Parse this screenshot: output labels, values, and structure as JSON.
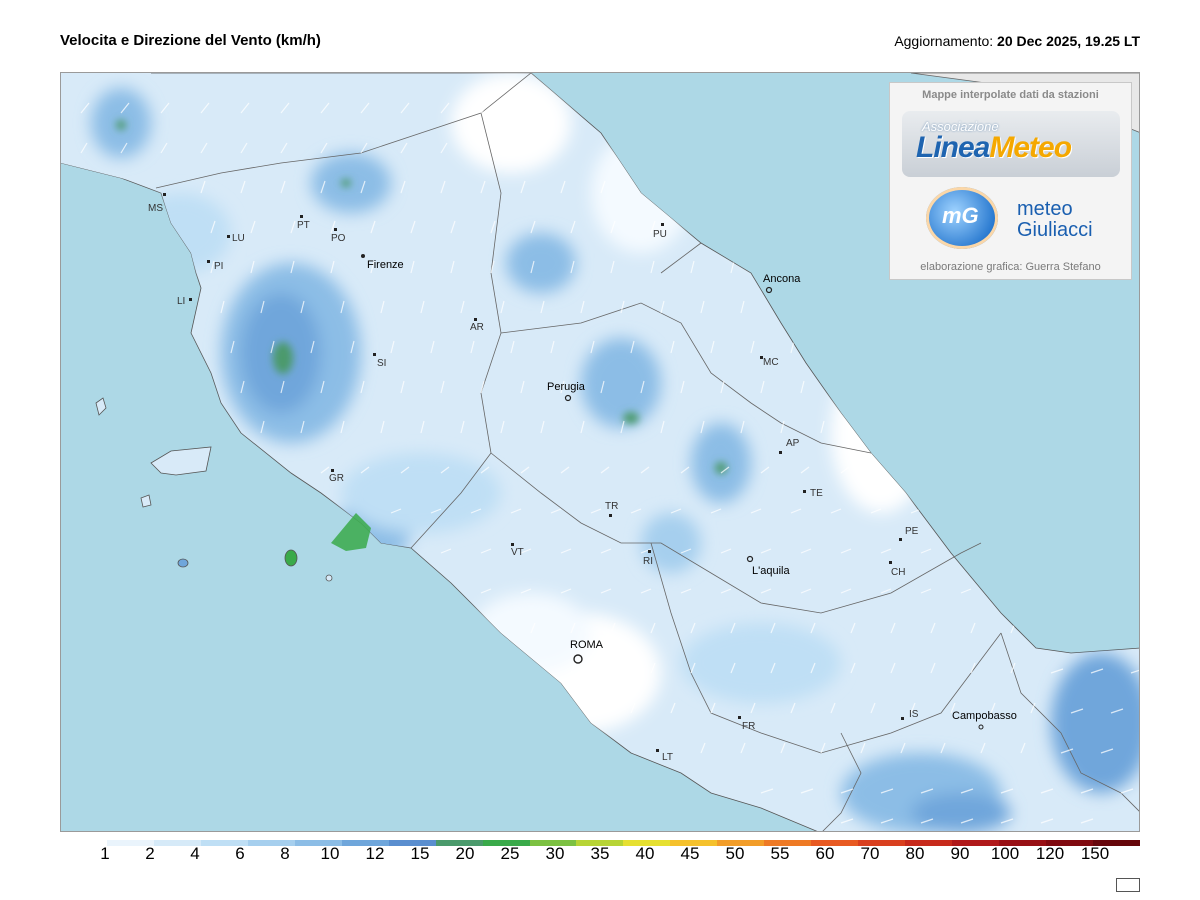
{
  "header": {
    "title": "Velocita e Direzione del Vento  (km/h)",
    "update_label": "Aggiornamento:",
    "update_value": "20 Dec 2025, 19.25 LT"
  },
  "logo": {
    "heading": "Mappe interpolate dati da stazioni",
    "association_small": "Associazione",
    "brand_part1": "Linea",
    "brand_part2": "Meteo",
    "mg_mark": "mG",
    "partner_line1": "meteo",
    "partner_line2": "Giuliacci",
    "credit": "elaborazione grafica: Guerra Stefano"
  },
  "cities": [
    "MS",
    "LU",
    "PT",
    "PO",
    "PI",
    "LI",
    "Firenze",
    "SI",
    "AR",
    "PU",
    "Ancona",
    "MC",
    "Perugia",
    "AP",
    "TE",
    "GR",
    "TR",
    "VT",
    "RI",
    "PE",
    "L'aquila",
    "CH",
    "ROMA",
    "FR",
    "LT",
    "IS",
    "Campobasso"
  ],
  "colorbar": {
    "labels": [
      "1",
      "2",
      "4",
      "6",
      "8",
      "10",
      "12",
      "15",
      "20",
      "25",
      "30",
      "35",
      "40",
      "45",
      "50",
      "55",
      "60",
      "70",
      "80",
      "90",
      "100",
      "120",
      "150"
    ],
    "colors": [
      "#ffffff",
      "#eaf4fc",
      "#d6eaf8",
      "#bfdff5",
      "#a6cfee",
      "#8cbde6",
      "#6fa6db",
      "#5a8ecf",
      "#4b9a6c",
      "#3aaa4a",
      "#7cc142",
      "#b7d435",
      "#e6e031",
      "#f5c12c",
      "#f29d29",
      "#ee7a25",
      "#e85a22",
      "#d9401f",
      "#c72a1c",
      "#b0191a",
      "#981015",
      "#800a10",
      "#66060b"
    ]
  },
  "map": {
    "sea_color": "#add8e6",
    "land_base_color": "#d8eaf8",
    "calm_color": "#ffffff",
    "strong_wind_color": "#5a8ecf",
    "peak_wind_color": "#4b9a6c"
  }
}
